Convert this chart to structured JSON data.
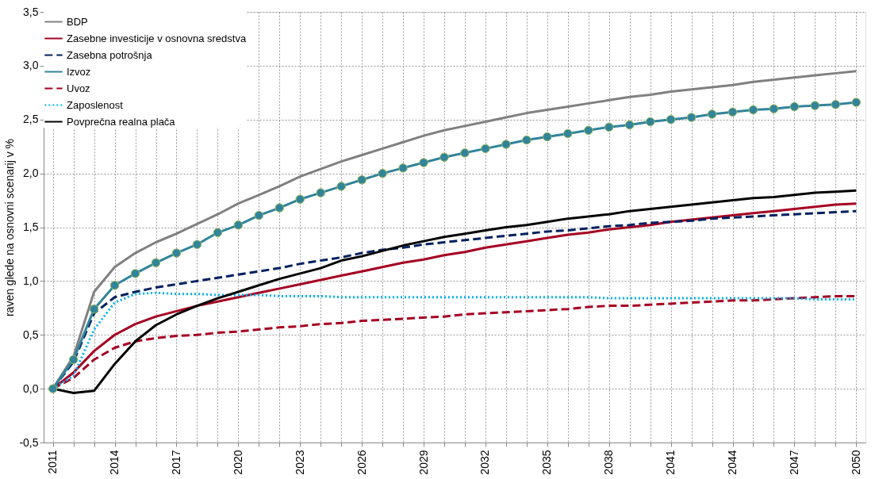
{
  "chart_data": {
    "type": "line",
    "ylabel": "raven glede na osnovni scenarij v %",
    "categories": [
      "2011",
      null,
      null,
      "2014",
      null,
      null,
      "2017",
      null,
      null,
      "2020",
      null,
      null,
      "2023",
      null,
      null,
      "2026",
      null,
      null,
      "2029",
      null,
      null,
      "2032",
      null,
      null,
      "2035",
      null,
      null,
      "2038",
      null,
      null,
      "2041",
      null,
      null,
      "2044",
      null,
      null,
      "2047",
      null,
      null,
      "2050"
    ],
    "ylim": [
      -0.5,
      3.5
    ],
    "yticks": [
      {
        "value": -0.5,
        "label": "-0,5"
      },
      {
        "value": 0,
        "label": "0,0"
      },
      {
        "value": 0.5,
        "label": "0,5"
      },
      {
        "value": 1,
        "label": "1,0"
      },
      {
        "value": 1.5,
        "label": "1,5"
      },
      {
        "value": 2,
        "label": "2,0"
      },
      {
        "value": 2.5,
        "label": "2,5"
      },
      {
        "value": 3,
        "label": "3,0"
      },
      {
        "value": 3.5,
        "label": "3,5"
      }
    ],
    "grid": true,
    "legend": "top left",
    "series": [
      {
        "name": "BDP",
        "color": "#808080",
        "line_style": "solid",
        "values": [
          0,
          0.3,
          0.9,
          1.13,
          1.26,
          1.36,
          1.44,
          1.53,
          1.62,
          1.72,
          1.8,
          1.88,
          1.97,
          2.04,
          2.11,
          2.17,
          2.23,
          2.29,
          2.35,
          2.4,
          2.44,
          2.48,
          2.52,
          2.56,
          2.59,
          2.62,
          2.65,
          2.68,
          2.71,
          2.73,
          2.76,
          2.78,
          2.8,
          2.82,
          2.85,
          2.87,
          2.89,
          2.91,
          2.93,
          2.95
        ]
      },
      {
        "name": "Zasebne investicije v osnovna sredstva",
        "color": "#a50021",
        "line_style": "solid",
        "values": [
          0,
          0.15,
          0.35,
          0.5,
          0.6,
          0.67,
          0.72,
          0.77,
          0.81,
          0.85,
          0.89,
          0.93,
          0.97,
          1.01,
          1.05,
          1.09,
          1.13,
          1.17,
          1.2,
          1.24,
          1.27,
          1.31,
          1.34,
          1.37,
          1.4,
          1.43,
          1.45,
          1.48,
          1.5,
          1.52,
          1.55,
          1.57,
          1.59,
          1.61,
          1.63,
          1.65,
          1.67,
          1.69,
          1.71,
          1.72
        ]
      },
      {
        "name": "Zasebna potrošnja",
        "color": "#002060",
        "line_style": "dashed",
        "values": [
          0,
          0.25,
          0.7,
          0.85,
          0.9,
          0.94,
          0.97,
          1.0,
          1.03,
          1.06,
          1.09,
          1.12,
          1.16,
          1.19,
          1.22,
          1.26,
          1.29,
          1.31,
          1.34,
          1.36,
          1.38,
          1.4,
          1.42,
          1.44,
          1.46,
          1.47,
          1.49,
          1.51,
          1.52,
          1.54,
          1.55,
          1.56,
          1.58,
          1.59,
          1.6,
          1.61,
          1.62,
          1.63,
          1.64,
          1.65
        ]
      },
      {
        "name": "Izvoz",
        "color": "#31849b",
        "line_style": "solid",
        "marker": "circle",
        "values": [
          0,
          0.27,
          0.74,
          0.96,
          1.07,
          1.17,
          1.26,
          1.34,
          1.45,
          1.52,
          1.61,
          1.68,
          1.76,
          1.82,
          1.88,
          1.94,
          2.0,
          2.05,
          2.1,
          2.15,
          2.19,
          2.23,
          2.27,
          2.31,
          2.34,
          2.37,
          2.4,
          2.43,
          2.45,
          2.48,
          2.5,
          2.52,
          2.55,
          2.57,
          2.59,
          2.6,
          2.62,
          2.63,
          2.64,
          2.66
        ]
      },
      {
        "name": "Uvoz",
        "color": "#a50021",
        "line_style": "dashed",
        "values": [
          0,
          0.1,
          0.27,
          0.38,
          0.44,
          0.47,
          0.49,
          0.5,
          0.52,
          0.53,
          0.55,
          0.57,
          0.58,
          0.6,
          0.61,
          0.63,
          0.64,
          0.65,
          0.66,
          0.67,
          0.69,
          0.7,
          0.71,
          0.72,
          0.73,
          0.74,
          0.76,
          0.77,
          0.77,
          0.78,
          0.79,
          0.8,
          0.81,
          0.82,
          0.82,
          0.83,
          0.84,
          0.85,
          0.86,
          0.86
        ]
      },
      {
        "name": "Zaposlenost",
        "color": "#00b0f0",
        "line_style": "dotted",
        "values": [
          0,
          0.12,
          0.55,
          0.8,
          0.88,
          0.89,
          0.88,
          0.88,
          0.87,
          0.87,
          0.87,
          0.86,
          0.86,
          0.86,
          0.85,
          0.85,
          0.85,
          0.85,
          0.85,
          0.85,
          0.85,
          0.85,
          0.85,
          0.85,
          0.85,
          0.85,
          0.85,
          0.84,
          0.84,
          0.84,
          0.84,
          0.84,
          0.84,
          0.84,
          0.84,
          0.84,
          0.84,
          0.83,
          0.83,
          0.83
        ]
      },
      {
        "name": "Povprečna realna plača",
        "color": "#000000",
        "line_style": "solid",
        "values": [
          0,
          -0.04,
          -0.02,
          0.23,
          0.44,
          0.59,
          0.69,
          0.77,
          0.84,
          0.9,
          0.96,
          1.02,
          1.07,
          1.12,
          1.19,
          1.23,
          1.28,
          1.33,
          1.37,
          1.41,
          1.44,
          1.47,
          1.5,
          1.52,
          1.55,
          1.58,
          1.6,
          1.62,
          1.65,
          1.67,
          1.69,
          1.71,
          1.73,
          1.75,
          1.77,
          1.78,
          1.8,
          1.82,
          1.83,
          1.84
        ]
      }
    ]
  }
}
